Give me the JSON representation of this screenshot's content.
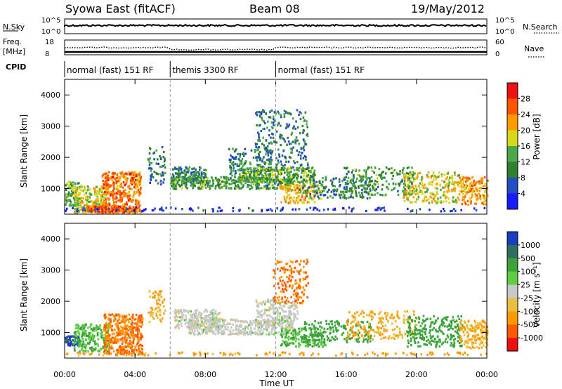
{
  "header": {
    "station": "Syowa East (fitACF)",
    "beam": "Beam 08",
    "date": "19/May/2012"
  },
  "sky_panel": {
    "left_label": "N.Sky",
    "right_label": "N.Search",
    "ticks_left": [
      "10^5",
      "10^0"
    ],
    "ticks_right": [
      "10^5",
      "10^0"
    ]
  },
  "freq_panel": {
    "left_label_top": "Freq.",
    "left_label_bottom": "[MHz]",
    "right_label": "Nave",
    "ticks_left": [
      "18",
      "8"
    ],
    "ticks_right": [
      "60",
      "0"
    ]
  },
  "cpid": {
    "label": "CPID",
    "segments": [
      {
        "name": "normal (fast) 151 RF",
        "start_h": 0,
        "end_h": 6
      },
      {
        "name": "themis 3300 RF",
        "start_h": 6,
        "end_h": 12
      },
      {
        "name": "normal (fast) 151 RF",
        "start_h": 12,
        "end_h": 24
      }
    ]
  },
  "colors": {
    "power": [
      "#1a1aff",
      "#2050c0",
      "#2f7f2f",
      "#4aa84a",
      "#d8d81a",
      "#ff9900",
      "#ff5500",
      "#ee1111"
    ],
    "velocity": [
      "#1a3cc0",
      "#2f6f5f",
      "#3aa33a",
      "#60cc40",
      "#c8c8c8",
      "#e8c040",
      "#ff9a00",
      "#ff5a00",
      "#ee1111"
    ]
  },
  "chart_data": [
    {
      "type": "heatmap",
      "title": "Power",
      "xlabel": "",
      "ylabel": "Slant Range [km]",
      "xlim": [
        0,
        24
      ],
      "ylim": [
        180,
        4500
      ],
      "x_ticks": [
        "00:00",
        "04:00",
        "08:00",
        "12:00",
        "16:00",
        "20:00",
        "00:00"
      ],
      "y_ticks": [
        "1000",
        "2000",
        "3000",
        "4000"
      ],
      "colorbar": {
        "label": "Power [dB]",
        "ticks": [
          "4",
          "8",
          "12",
          "16",
          "20",
          "24",
          "28"
        ]
      },
      "clusters": [
        {
          "t": 0.2,
          "r": 800,
          "dt": 0.6,
          "dr": 400,
          "value": 14,
          "n": 120
        },
        {
          "t": 1.5,
          "r": 600,
          "dt": 1.0,
          "dr": 450,
          "value": 18,
          "n": 260
        },
        {
          "t": 3.2,
          "r": 800,
          "dt": 1.1,
          "dr": 700,
          "value": 24,
          "n": 420
        },
        {
          "t": 2.6,
          "r": 300,
          "dt": 1.4,
          "dr": 100,
          "value": 26,
          "n": 160
        },
        {
          "t": 5.2,
          "r": 1700,
          "dt": 0.5,
          "dr": 600,
          "value": 8,
          "n": 60
        },
        {
          "t": 7.0,
          "r": 1400,
          "dt": 1.0,
          "dr": 250,
          "value": 10,
          "n": 150
        },
        {
          "t": 9.5,
          "r": 1150,
          "dt": 3.5,
          "dr": 200,
          "value": 12,
          "n": 380
        },
        {
          "t": 10.5,
          "r": 1800,
          "dt": 1.2,
          "dr": 500,
          "value": 10,
          "n": 140
        },
        {
          "t": 12.3,
          "r": 2500,
          "dt": 1.5,
          "dr": 1000,
          "value": 9,
          "n": 260
        },
        {
          "t": 12.0,
          "r": 1400,
          "dt": 2.2,
          "dr": 250,
          "value": 14,
          "n": 320
        },
        {
          "t": 13.4,
          "r": 800,
          "dt": 1.2,
          "dr": 300,
          "value": 20,
          "n": 140
        },
        {
          "t": 15.3,
          "r": 1000,
          "dt": 2.0,
          "dr": 350,
          "value": 10,
          "n": 170
        },
        {
          "t": 17.8,
          "r": 1200,
          "dt": 2.0,
          "dr": 450,
          "value": 12,
          "n": 200
        },
        {
          "t": 20.8,
          "r": 1000,
          "dt": 1.6,
          "dr": 500,
          "value": 18,
          "n": 250
        },
        {
          "t": 23.2,
          "r": 900,
          "dt": 0.8,
          "dr": 450,
          "value": 22,
          "n": 160
        },
        {
          "t": 12.0,
          "r": 300,
          "dt": 12.0,
          "dr": 60,
          "value": 4,
          "n": 120
        }
      ]
    },
    {
      "type": "heatmap",
      "title": "Velocity",
      "xlabel": "Time UT",
      "ylabel": "Slant Range [km]",
      "xlim": [
        0,
        24
      ],
      "ylim": [
        180,
        4500
      ],
      "x_ticks": [
        "00:00",
        "04:00",
        "08:00",
        "12:00",
        "16:00",
        "20:00",
        "00:00"
      ],
      "y_ticks": [
        "1000",
        "2000",
        "3000",
        "4000"
      ],
      "colorbar": {
        "label": "Velocity [m s⁻¹]",
        "ticks": [
          "1000",
          "500",
          "100",
          "25",
          "-25",
          "-100",
          "-500",
          "-1000"
        ]
      },
      "clusters": [
        {
          "t": 0.4,
          "r": 700,
          "dt": 0.4,
          "dr": 150,
          "value": 1000,
          "n": 60
        },
        {
          "t": 1.5,
          "r": 800,
          "dt": 1.0,
          "dr": 450,
          "value": 100,
          "n": 200
        },
        {
          "t": 3.3,
          "r": 900,
          "dt": 1.1,
          "dr": 650,
          "value": -500,
          "n": 420
        },
        {
          "t": 5.2,
          "r": 1800,
          "dt": 0.5,
          "dr": 500,
          "value": -100,
          "n": 60
        },
        {
          "t": 7.5,
          "r": 1400,
          "dt": 1.3,
          "dr": 300,
          "value": 0,
          "n": 220
        },
        {
          "t": 10.0,
          "r": 1150,
          "dt": 3.0,
          "dr": 250,
          "value": 0,
          "n": 420
        },
        {
          "t": 12.0,
          "r": 1600,
          "dt": 1.2,
          "dr": 450,
          "value": 0,
          "n": 200
        },
        {
          "t": 12.8,
          "r": 2600,
          "dt": 1.0,
          "dr": 700,
          "value": -500,
          "n": 160
        },
        {
          "t": 13.5,
          "r": 800,
          "dt": 1.3,
          "dr": 300,
          "value": 100,
          "n": 160
        },
        {
          "t": 15.5,
          "r": 1000,
          "dt": 2.0,
          "dr": 350,
          "value": 300,
          "n": 160
        },
        {
          "t": 18.0,
          "r": 1200,
          "dt": 2.0,
          "dr": 450,
          "value": -100,
          "n": 190
        },
        {
          "t": 21.0,
          "r": 1000,
          "dt": 1.6,
          "dr": 500,
          "value": 300,
          "n": 230
        },
        {
          "t": 23.2,
          "r": 900,
          "dt": 0.8,
          "dr": 450,
          "value": -100,
          "n": 150
        },
        {
          "t": 12.0,
          "r": 280,
          "dt": 12.0,
          "dr": 50,
          "value": -150,
          "n": 120
        }
      ]
    }
  ]
}
